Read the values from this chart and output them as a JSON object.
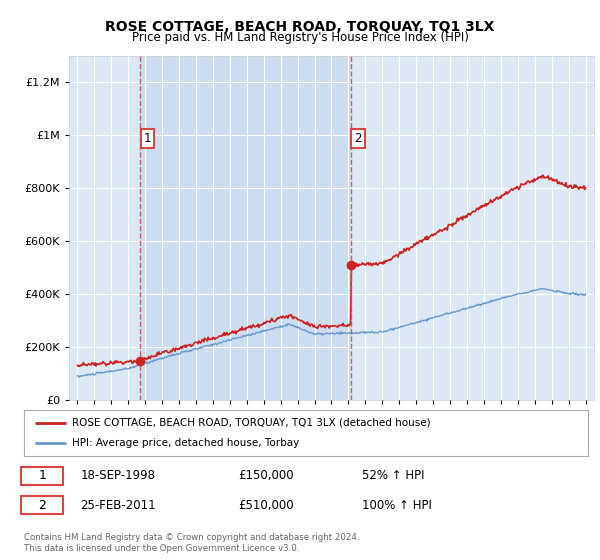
{
  "title": "ROSE COTTAGE, BEACH ROAD, TORQUAY, TQ1 3LX",
  "subtitle": "Price paid vs. HM Land Registry's House Price Index (HPI)",
  "fig_bg_color": "#ffffff",
  "plot_bg_color": "#dce9f5",
  "plot_bg_between": "#ccddf0",
  "red_line_color": "#cc2222",
  "blue_line_color": "#6699cc",
  "dashed_line_color": "#dd4444",
  "sale1_date": 1998.72,
  "sale1_price": 150000,
  "sale2_date": 2011.15,
  "sale2_price": 510000,
  "ylim": [
    0,
    1300000
  ],
  "xlim": [
    1994.5,
    2025.5
  ],
  "yticks": [
    0,
    200000,
    400000,
    600000,
    800000,
    1000000,
    1200000
  ],
  "ytick_labels": [
    "£0",
    "£200K",
    "£400K",
    "£600K",
    "£800K",
    "£1M",
    "£1.2M"
  ],
  "xticks": [
    1995,
    1996,
    1997,
    1998,
    1999,
    2000,
    2001,
    2002,
    2003,
    2004,
    2005,
    2006,
    2007,
    2008,
    2009,
    2010,
    2011,
    2012,
    2013,
    2014,
    2015,
    2016,
    2017,
    2018,
    2019,
    2020,
    2021,
    2022,
    2023,
    2024,
    2025
  ],
  "legend_label_red": "ROSE COTTAGE, BEACH ROAD, TORQUAY, TQ1 3LX (detached house)",
  "legend_label_blue": "HPI: Average price, detached house, Torbay",
  "annotation1_text": "1",
  "annotation2_text": "2",
  "footer_text": "Contains HM Land Registry data © Crown copyright and database right 2024.\nThis data is licensed under the Open Government Licence v3.0.",
  "table_row1": [
    "1",
    "18-SEP-1998",
    "£150,000",
    "52% ↑ HPI"
  ],
  "table_row2": [
    "2",
    "25-FEB-2011",
    "£510,000",
    "100% ↑ HPI"
  ]
}
